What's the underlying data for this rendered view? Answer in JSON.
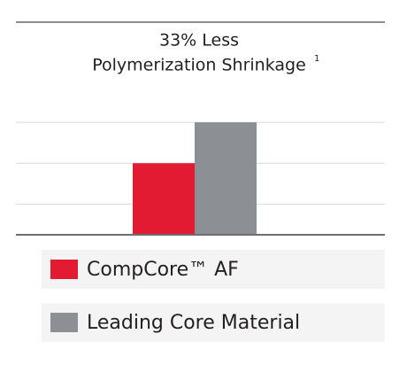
{
  "chart_data": {
    "type": "bar",
    "title": [
      "33% Less",
      "Polymerization Shrinkage"
    ],
    "title_footnote": "1",
    "series": [
      {
        "name": "CompCore™ AF",
        "color": "#e31b32",
        "values": [
          2
        ]
      },
      {
        "name": "Leading Core Material",
        "color": "#8c9094",
        "values": [
          3
        ]
      }
    ],
    "ylim": [
      0.25,
      3.5
    ],
    "yticks": [
      1,
      2,
      3
    ],
    "grid": true,
    "legend": "bottom"
  }
}
